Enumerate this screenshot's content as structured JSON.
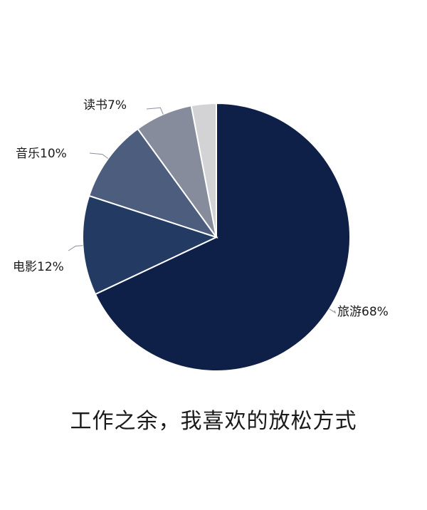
{
  "chart_data": {
    "type": "pie",
    "title": "工作之余，我喜欢的放松方式",
    "slices": [
      {
        "label": "旅游",
        "value": 68,
        "display": "旅游68%",
        "color": "#0e1f48"
      },
      {
        "label": "电影",
        "value": 12,
        "display": "电影12%",
        "color": "#233b63"
      },
      {
        "label": "音乐",
        "value": 10,
        "display": "音乐10%",
        "color": "#4c5d7e"
      },
      {
        "label": "读书",
        "value": 7,
        "display": "读书7%",
        "color": "#878c9c"
      },
      {
        "label": "",
        "value": 3,
        "display": "",
        "color": "#d3d3d5"
      }
    ],
    "legend": "none"
  }
}
